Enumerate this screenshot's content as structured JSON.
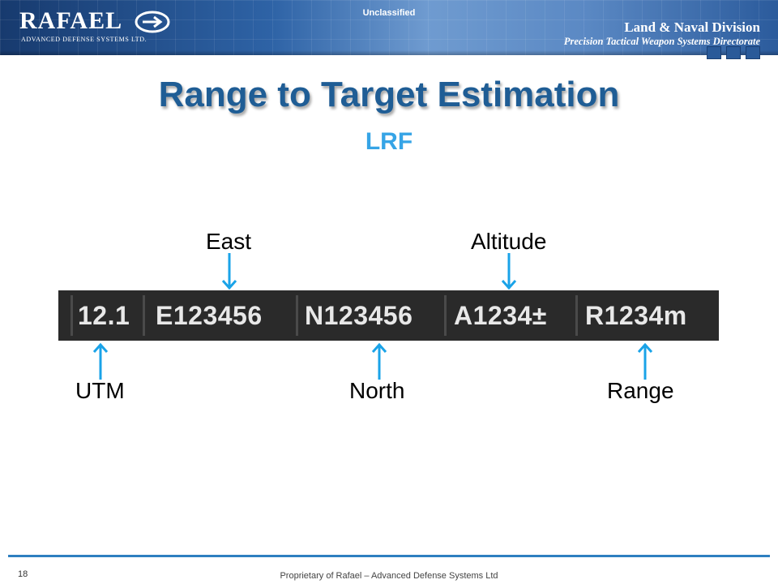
{
  "header": {
    "logo_word": "RAFAEL",
    "logo_tagline": "ADVANCED DEFENSE SYSTEMS LTD.",
    "classification": "Unclassified",
    "division": "Land & Naval Division",
    "directorate": "Precision Tactical Weapon Systems Directorate"
  },
  "slide": {
    "title": "Range to Target Estimation",
    "subtitle": "LRF"
  },
  "readout": {
    "fields": [
      "12.1",
      "E123456",
      "N123456",
      "A1234±",
      "R1234m"
    ]
  },
  "callouts": {
    "east": "East",
    "altitude": "Altitude",
    "utm": "UTM",
    "north": "North",
    "range": "Range"
  },
  "footer": {
    "page_number": "18",
    "proprietary": "Proprietary of Rafael – Advanced Defense Systems Ltd"
  },
  "colors": {
    "title": "#1f5d95",
    "subtitle": "#36a4e6",
    "arrow": "#1aa3e8",
    "readout_bg": "#2a2a2a"
  }
}
